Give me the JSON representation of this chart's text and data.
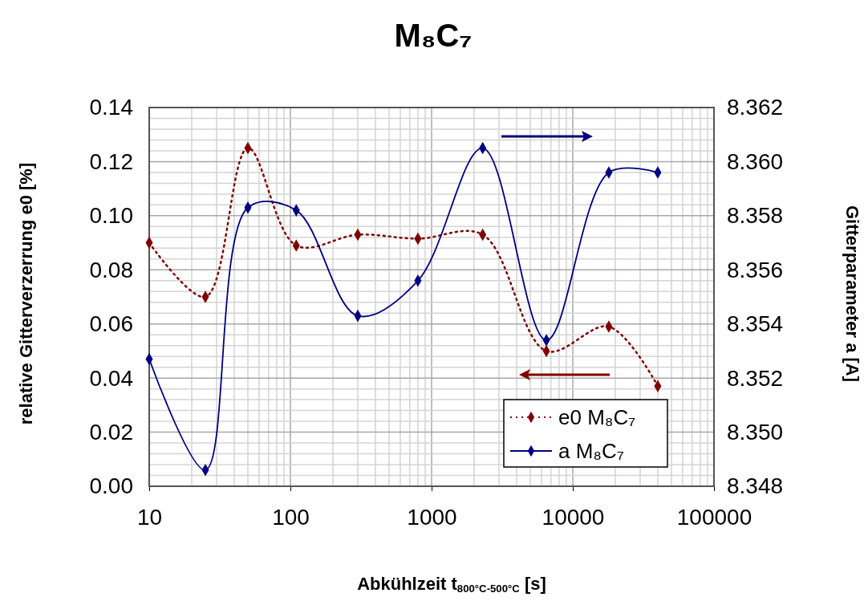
{
  "chart_data": {
    "type": "line",
    "title": "M₈C₇",
    "xlabel": "Abkühlzeit t$_{800°C-500°C}$ [s]",
    "ylabel": "relative Gitterverzerrung e0 [%]",
    "y2label": "Gitterparameter a [A]",
    "log": "x",
    "xlim": [
      10,
      100000
    ],
    "xticks": [
      10,
      100,
      1000,
      10000,
      100000
    ],
    "ylim": [
      0,
      0.14
    ],
    "yticks": [
      {
        "value": 0,
        "label": "0.00"
      },
      {
        "value": 0.02,
        "label": "0.02"
      },
      {
        "value": 0.04,
        "label": "0.04"
      },
      {
        "value": 0.06,
        "label": "0.06"
      },
      {
        "value": 0.08,
        "label": "0.08"
      },
      {
        "value": 0.1,
        "label": "0.10"
      },
      {
        "value": 0.12,
        "label": "0.12"
      },
      {
        "value": 0.14,
        "label": "0.14"
      }
    ],
    "y2lim": [
      8.348,
      8.362
    ],
    "y2ticks": [
      {
        "value": 8.348,
        "label": "8.348"
      },
      {
        "value": 8.35,
        "label": "8.350"
      },
      {
        "value": 8.352,
        "label": "8.352"
      },
      {
        "value": 8.354,
        "label": "8.354"
      },
      {
        "value": 8.356,
        "label": "8.356"
      },
      {
        "value": 8.358,
        "label": "8.358"
      },
      {
        "value": 8.36,
        "label": "8.360"
      },
      {
        "value": 8.362,
        "label": "8.362"
      }
    ],
    "grid": true,
    "legend": "bottom right",
    "marker": "diamond",
    "x": [
      10,
      25,
      50,
      110,
      300,
      800,
      2300,
      6500,
      18000,
      40000
    ],
    "series": [
      {
        "name": "e0 M₈C₇",
        "color": "#800000",
        "line_style": "dotted",
        "values": [
          0.09,
          0.07,
          0.125,
          0.089,
          0.093,
          0.0915,
          0.093,
          0.05,
          0.059,
          0.037
        ]
      },
      {
        "name": "a M₈C₇",
        "color": "#000080",
        "line_style": "solid",
        "axis": "y2",
        "values": [
          8.3527,
          8.3486,
          8.3583,
          8.3582,
          8.3543,
          8.3556,
          8.3605,
          8.3534,
          8.3596,
          8.3596
        ]
      }
    ]
  }
}
